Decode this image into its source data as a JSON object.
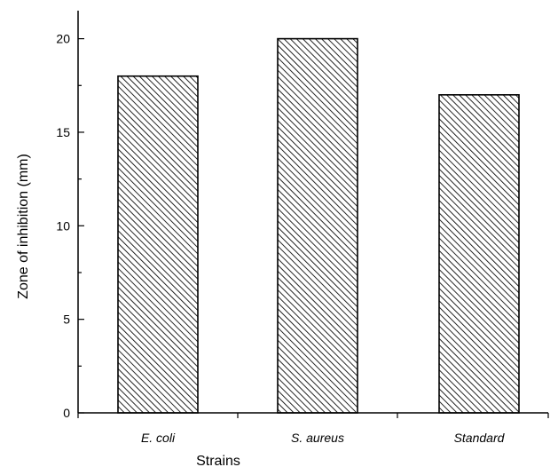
{
  "chart_data": {
    "type": "bar",
    "categories": [
      "E. coli",
      "S. aureus",
      "Standard"
    ],
    "values": [
      18,
      20,
      17
    ],
    "title": "",
    "xlabel": "Strains",
    "ylabel": "Zone of inhibition (mm)",
    "ylim": [
      0,
      21.5
    ],
    "yticks": [
      0,
      5,
      10,
      15,
      20
    ],
    "grid": false,
    "legend": "none",
    "bar_fill": "hatched",
    "colors": {
      "bar_edge": "#000000",
      "hatch": "#000000",
      "background": "#ffffff"
    }
  }
}
